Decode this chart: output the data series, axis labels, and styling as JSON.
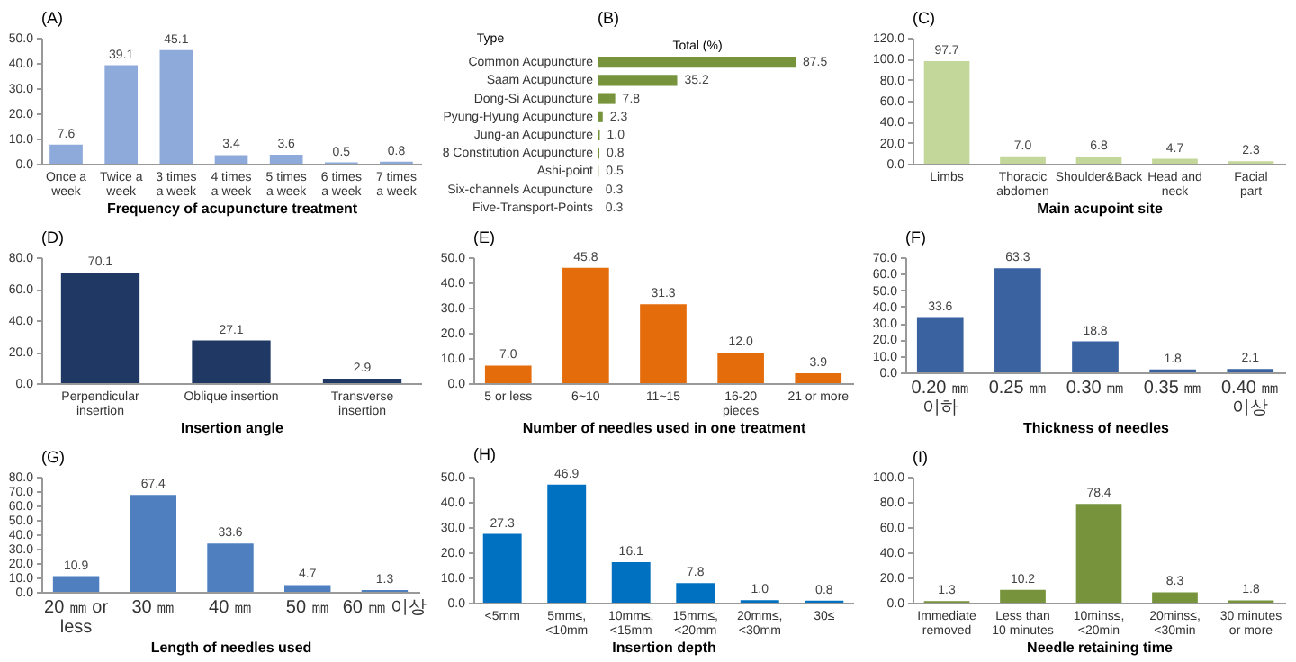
{
  "chart_data": [
    {
      "type": "bar",
      "title": "(A)",
      "xlabel": "Frequency of acupuncture treatment",
      "categories": [
        "Once a week",
        "Twice a week",
        "3 times a week",
        "4 times a week",
        "5 times a week",
        "6 times a week",
        "7 times a week"
      ],
      "values": [
        7.6,
        39.1,
        45.1,
        3.4,
        3.6,
        0.5,
        0.8
      ],
      "value_labels": [
        "7.6",
        "39.1",
        "45.1",
        "3.4",
        "3.6",
        "0.5",
        "0.8"
      ],
      "color": "#8eaadb",
      "ylim": [
        0,
        50
      ],
      "yticks": [
        {
          "value": 0,
          "label": "0.0"
        },
        {
          "value": 10,
          "label": "10.0"
        },
        {
          "value": 20,
          "label": "20.0"
        },
        {
          "value": 30,
          "label": "30.0"
        },
        {
          "value": 40,
          "label": "40.0"
        },
        {
          "value": 50,
          "label": "50.0"
        }
      ]
    },
    {
      "type": "bar",
      "title": "(B)",
      "orientation": "horizontal",
      "ylabel": "Type",
      "xlabel": "Total (%)",
      "categories": [
        "Common Acupuncture",
        "Saam Acupuncture",
        "Dong-Si Acupuncture",
        "Pyung-Hyung Acupuncture",
        "Jung-an Acupuncture",
        "8 Constitution Acupuncture",
        "Ashi-point",
        "Six-channels Acupuncture",
        "Five-Transport-Points"
      ],
      "values": [
        87.5,
        35.2,
        7.8,
        2.3,
        1.0,
        0.8,
        0.5,
        0.3,
        0.3
      ],
      "value_labels": [
        "87.5",
        "35.2",
        "7.8",
        "2.3",
        "1.0",
        "0.8",
        "0.5",
        "0.3",
        "0.3"
      ],
      "color": "#77933c"
    },
    {
      "type": "bar",
      "title": "(C)",
      "xlabel": "Main acupoint site",
      "categories": [
        "Limbs",
        "Thoracic abdomen",
        "Shoulder&Back",
        "Head and neck",
        "Facial part"
      ],
      "values": [
        97.7,
        7.0,
        6.8,
        4.7,
        2.3
      ],
      "value_labels": [
        "97.7",
        "7.0",
        "6.8",
        "4.7",
        "2.3"
      ],
      "color": "#c4d79b",
      "ylim": [
        0,
        120
      ],
      "yticks": [
        {
          "value": 0,
          "label": "0.0"
        },
        {
          "value": 20,
          "label": "20.0"
        },
        {
          "value": 40,
          "label": "40.0"
        },
        {
          "value": 60,
          "label": "60.0"
        },
        {
          "value": 80,
          "label": "80.0"
        },
        {
          "value": 100,
          "label": "100.0"
        },
        {
          "value": 120,
          "label": "120.0"
        }
      ]
    },
    {
      "type": "bar",
      "title": "(D)",
      "xlabel": "Insertion angle",
      "categories": [
        "Perpendicular insertion",
        "Oblique insertion",
        "Transverse insertion"
      ],
      "values": [
        70.1,
        27.1,
        2.9
      ],
      "value_labels": [
        "70.1",
        "27.1",
        "2.9"
      ],
      "color": "#1f3864",
      "ylim": [
        0,
        80
      ],
      "yticks": [
        {
          "value": 0,
          "label": "0.0"
        },
        {
          "value": 20,
          "label": "20.0"
        },
        {
          "value": 40,
          "label": "40.0"
        },
        {
          "value": 60,
          "label": "60.0"
        },
        {
          "value": 80,
          "label": "80.0"
        }
      ]
    },
    {
      "type": "bar",
      "title": "(E)",
      "xlabel": "Number of needles used in one treatment",
      "categories": [
        "5 or less",
        "6~10",
        "11~15",
        "16-20 pieces",
        "21 or more"
      ],
      "values": [
        7.0,
        45.8,
        31.3,
        12.0,
        3.9
      ],
      "value_labels": [
        "7.0",
        "45.8",
        "31.3",
        "12.0",
        "3.9"
      ],
      "color": "#e46c0a",
      "ylim": [
        0,
        50
      ],
      "yticks": [
        {
          "value": 0,
          "label": "0.0"
        },
        {
          "value": 10,
          "label": "10.0"
        },
        {
          "value": 20,
          "label": "20.0"
        },
        {
          "value": 30,
          "label": "30.0"
        },
        {
          "value": 40,
          "label": "40.0"
        },
        {
          "value": 50,
          "label": "50.0"
        }
      ]
    },
    {
      "type": "bar",
      "title": "(F)",
      "xlabel": "Thickness of needles",
      "categories": [
        "0.20 ㎜ 이하",
        "0.25 ㎜",
        "0.30 ㎜",
        "0.35 ㎜",
        "0.40 ㎜ 이상"
      ],
      "values": [
        33.6,
        63.3,
        18.8,
        1.8,
        2.1
      ],
      "value_labels": [
        "33.6",
        "63.3",
        "18.8",
        "1.8",
        "2.1"
      ],
      "color": "#3a62a0",
      "ylim": [
        0,
        70
      ],
      "yticks": [
        {
          "value": 0,
          "label": "0.0"
        },
        {
          "value": 10,
          "label": "10.0"
        },
        {
          "value": 20,
          "label": "20.0"
        },
        {
          "value": 30,
          "label": "30.0"
        },
        {
          "value": 40,
          "label": "40.0"
        },
        {
          "value": 50,
          "label": "50.0"
        },
        {
          "value": 60,
          "label": "60.0"
        },
        {
          "value": 70,
          "label": "70.0"
        }
      ]
    },
    {
      "type": "bar",
      "title": "(G)",
      "xlabel": "Length of needles used",
      "categories": [
        "20 ㎜ or less",
        "30 ㎜",
        "40 ㎜",
        "50 ㎜",
        "60 ㎜ 이상"
      ],
      "values": [
        10.9,
        67.4,
        33.6,
        4.7,
        1.3
      ],
      "value_labels": [
        "10.9",
        "67.4",
        "33.6",
        "4.7",
        "1.3"
      ],
      "color": "#4f7fbf",
      "ylim": [
        0,
        80
      ],
      "yticks": [
        {
          "value": 0,
          "label": "0.0"
        },
        {
          "value": 10,
          "label": "10.0"
        },
        {
          "value": 20,
          "label": "20.0"
        },
        {
          "value": 30,
          "label": "30.0"
        },
        {
          "value": 40,
          "label": "40.0"
        },
        {
          "value": 50,
          "label": "50.0"
        },
        {
          "value": 60,
          "label": "60.0"
        },
        {
          "value": 70,
          "label": "70.0"
        },
        {
          "value": 80,
          "label": "80.0"
        }
      ]
    },
    {
      "type": "bar",
      "title": "(H)",
      "xlabel": "Insertion depth",
      "categories": [
        "<5mm",
        "5mm≤, <10mm",
        "10mm≤, <15mm",
        "15mm≤, <20mm",
        "20mm≤, <30mm",
        "30≤"
      ],
      "values": [
        27.3,
        46.9,
        16.1,
        7.8,
        1.0,
        0.8
      ],
      "value_labels": [
        "27.3",
        "46.9",
        "16.1",
        "7.8",
        "1.0",
        "0.8"
      ],
      "color": "#0070c0",
      "ylim": [
        0,
        50
      ],
      "yticks": [
        {
          "value": 0,
          "label": "0.0"
        },
        {
          "value": 10,
          "label": "10.0"
        },
        {
          "value": 20,
          "label": "20.0"
        },
        {
          "value": 30,
          "label": "30.0"
        },
        {
          "value": 40,
          "label": "40.0"
        },
        {
          "value": 50,
          "label": "50.0"
        }
      ]
    },
    {
      "type": "bar",
      "title": "(I)",
      "xlabel": "Needle retaining time",
      "categories": [
        "Immediate removed",
        "Less than 10 minutes",
        "10mins≤, <20min",
        "20mins≤, <30min",
        "30 minutes or more"
      ],
      "values": [
        1.3,
        10.2,
        78.4,
        8.3,
        1.8
      ],
      "value_labels": [
        "1.3",
        "10.2",
        "78.4",
        "8.3",
        "1.8"
      ],
      "color": "#77933c",
      "ylim": [
        0,
        100
      ],
      "yticks": [
        {
          "value": 0,
          "label": "0.0"
        },
        {
          "value": 20,
          "label": "20.0"
        },
        {
          "value": 40,
          "label": "40.0"
        },
        {
          "value": 60,
          "label": "60.0"
        },
        {
          "value": 80,
          "label": "80.0"
        },
        {
          "value": 100,
          "label": "100.0"
        }
      ]
    }
  ]
}
